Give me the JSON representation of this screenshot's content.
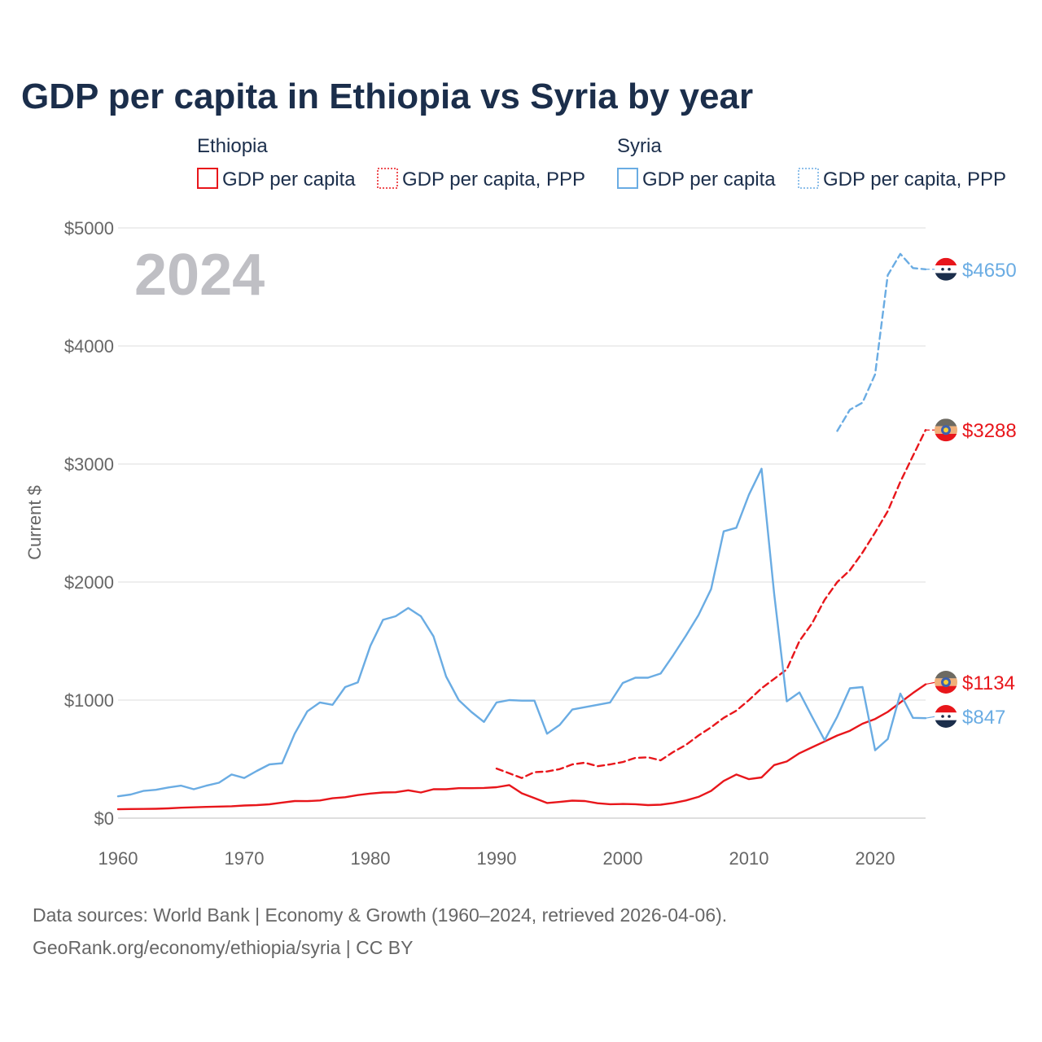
{
  "chart_data": {
    "type": "line",
    "title": "GDP per capita in Ethiopia vs Syria by year",
    "year_label": "2024",
    "ylabel": "Current $",
    "xlim": [
      1960,
      2024
    ],
    "ylim": [
      0,
      5000
    ],
    "x_ticks": [
      1960,
      1970,
      1980,
      1990,
      2000,
      2010,
      2020
    ],
    "x_tick_labels": [
      "1960",
      "1970",
      "1980",
      "1990",
      "2000",
      "2010",
      "2020"
    ],
    "y_ticks": [
      0,
      1000,
      2000,
      3000,
      4000,
      5000
    ],
    "y_tick_labels": [
      "$0",
      "$1000",
      "$2000",
      "$3000",
      "$4000",
      "$5000"
    ],
    "grid": true,
    "legend": {
      "placement": "top",
      "groups": [
        {
          "country": "Ethiopia",
          "items": [
            "GDP per capita",
            "GDP per capita, PPP"
          ]
        },
        {
          "country": "Syria",
          "items": [
            "GDP per capita",
            "GDP per capita, PPP"
          ]
        }
      ]
    },
    "series": [
      {
        "name": "Ethiopia GDP per capita",
        "country": "Ethiopia",
        "color": "#e8161b",
        "dash": "solid",
        "end_label": "$1134",
        "x": [
          1960,
          1961,
          1962,
          1963,
          1964,
          1965,
          1966,
          1967,
          1968,
          1969,
          1970,
          1971,
          1972,
          1973,
          1974,
          1975,
          1976,
          1977,
          1978,
          1979,
          1980,
          1981,
          1982,
          1983,
          1984,
          1985,
          1986,
          1987,
          1988,
          1989,
          1990,
          1991,
          1992,
          1993,
          1994,
          1995,
          1996,
          1997,
          1998,
          1999,
          2000,
          2001,
          2002,
          2003,
          2004,
          2005,
          2006,
          2007,
          2008,
          2009,
          2010,
          2011,
          2012,
          2013,
          2014,
          2015,
          2016,
          2017,
          2018,
          2019,
          2020,
          2021,
          2022,
          2023,
          2024
        ],
        "values": [
          75,
          77,
          78,
          79,
          83,
          88,
          92,
          95,
          98,
          101,
          107,
          110,
          117,
          132,
          145,
          144,
          150,
          168,
          177,
          195,
          208,
          217,
          219,
          236,
          217,
          245,
          245,
          254,
          254,
          256,
          262,
          280,
          210,
          170,
          128,
          137,
          148,
          145,
          126,
          118,
          120,
          118,
          110,
          114,
          128,
          150,
          180,
          230,
          315,
          370,
          330,
          345,
          450,
          480,
          550,
          600,
          650,
          700,
          740,
          800,
          840,
          900,
          980,
          1060,
          1134
        ]
      },
      {
        "name": "Ethiopia GDP per capita, PPP",
        "country": "Ethiopia",
        "color": "#e8161b",
        "dash": "dashed",
        "end_label": "$3288",
        "x": [
          1990,
          1991,
          1992,
          1993,
          1994,
          1995,
          1996,
          1997,
          1998,
          1999,
          2000,
          2001,
          2002,
          2003,
          2004,
          2005,
          2006,
          2007,
          2008,
          2009,
          2010,
          2011,
          2012,
          2013,
          2014,
          2015,
          2016,
          2017,
          2018,
          2019,
          2020,
          2021,
          2022,
          2023,
          2024
        ],
        "values": [
          420,
          380,
          340,
          390,
          395,
          415,
          455,
          470,
          440,
          455,
          475,
          510,
          515,
          490,
          560,
          620,
          700,
          770,
          850,
          910,
          1000,
          1100,
          1180,
          1260,
          1500,
          1650,
          1850,
          2000,
          2100,
          2250,
          2420,
          2600,
          2850,
          3070,
          3288
        ]
      },
      {
        "name": "Syria GDP per capita",
        "country": "Syria",
        "color": "#6aace3",
        "dash": "solid",
        "end_label": "$847",
        "x": [
          1960,
          1961,
          1962,
          1963,
          1964,
          1965,
          1966,
          1967,
          1968,
          1969,
          1970,
          1971,
          1972,
          1973,
          1974,
          1975,
          1976,
          1977,
          1978,
          1979,
          1980,
          1981,
          1982,
          1983,
          1984,
          1985,
          1986,
          1987,
          1988,
          1989,
          1990,
          1991,
          1992,
          1993,
          1994,
          1995,
          1996,
          1997,
          1998,
          1999,
          2000,
          2001,
          2002,
          2003,
          2004,
          2005,
          2006,
          2007,
          2008,
          2009,
          2010,
          2011,
          2012,
          2013,
          2014,
          2015,
          2016,
          2017,
          2018,
          2019,
          2020,
          2021,
          2022,
          2023,
          2024
        ],
        "values": [
          185,
          200,
          230,
          240,
          260,
          275,
          245,
          275,
          300,
          370,
          340,
          400,
          455,
          465,
          715,
          905,
          980,
          960,
          1110,
          1150,
          1460,
          1680,
          1710,
          1780,
          1710,
          1540,
          1200,
          1000,
          900,
          815,
          980,
          1000,
          995,
          995,
          715,
          790,
          920,
          940,
          960,
          980,
          1145,
          1190,
          1190,
          1225,
          1380,
          1545,
          1720,
          1940,
          2430,
          2460,
          2740,
          2960,
          1900,
          990,
          1065,
          860,
          660,
          860,
          1100,
          1110,
          575,
          670,
          1055,
          850,
          847
        ]
      },
      {
        "name": "Syria GDP per capita, PPP",
        "country": "Syria",
        "color": "#6aace3",
        "dash": "dashed",
        "end_label": "$4650",
        "x": [
          2017,
          2018,
          2019,
          2020,
          2021,
          2022,
          2023,
          2024
        ],
        "values": [
          3280,
          3460,
          3520,
          3760,
          4600,
          4780,
          4660,
          4650
        ]
      }
    ],
    "footer": [
      "Data sources: World Bank | Economy & Growth (1960–2024, retrieved 2026-04-06).",
      "GeoRank.org/economy/ethiopia/syria | CC BY"
    ]
  }
}
